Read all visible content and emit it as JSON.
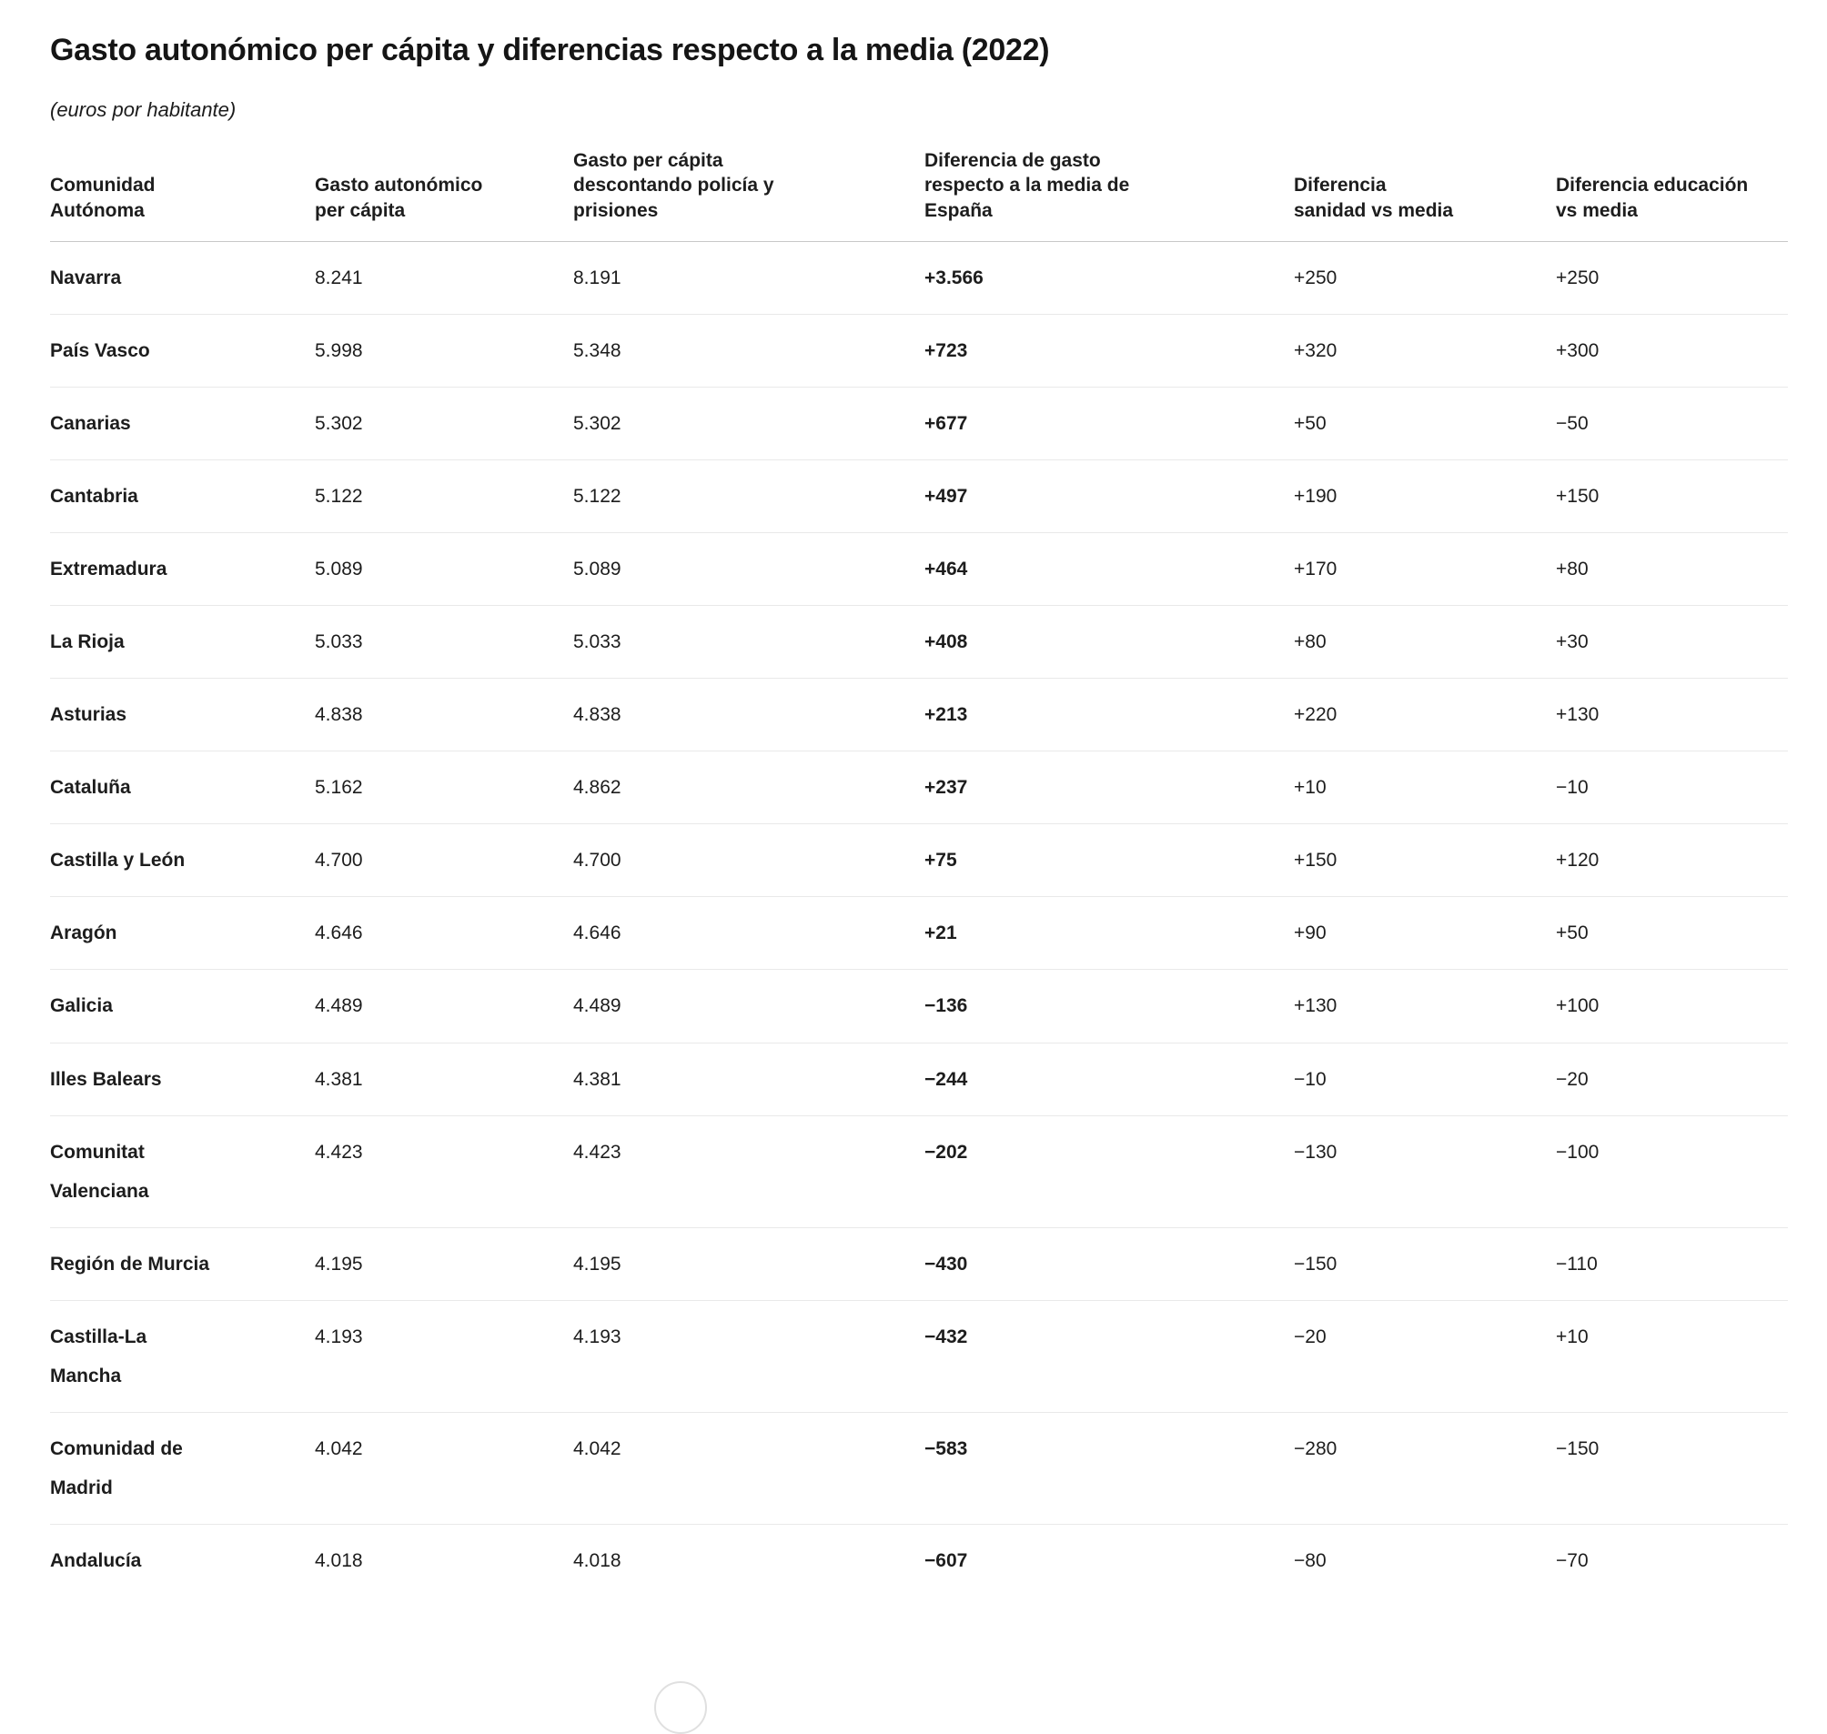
{
  "header": {
    "title": "Gasto autonómico per cápita y diferencias respecto a la media (2022)",
    "subtitle": "(euros por habitante)"
  },
  "table": {
    "columns": [
      "Comunidad Autónoma",
      "Gasto autonómico per cápita",
      "Gasto per cápita descontando policía y prisiones",
      "Diferencia de gasto respecto a la media de España",
      "Diferencia sanidad vs media",
      "Diferencia educación vs media"
    ],
    "rows": [
      {
        "region": "Navarra",
        "gasto": "8.241",
        "gasto_sin_policia": "8.191",
        "dif_gasto": "+3.566",
        "dif_sanidad": "+250",
        "dif_educacion": "+250"
      },
      {
        "region": "País Vasco",
        "gasto": "5.998",
        "gasto_sin_policia": "5.348",
        "dif_gasto": "+723",
        "dif_sanidad": "+320",
        "dif_educacion": "+300"
      },
      {
        "region": "Canarias",
        "gasto": "5.302",
        "gasto_sin_policia": "5.302",
        "dif_gasto": "+677",
        "dif_sanidad": "+50",
        "dif_educacion": "−50"
      },
      {
        "region": "Cantabria",
        "gasto": "5.122",
        "gasto_sin_policia": "5.122",
        "dif_gasto": "+497",
        "dif_sanidad": "+190",
        "dif_educacion": "+150"
      },
      {
        "region": "Extremadura",
        "gasto": "5.089",
        "gasto_sin_policia": "5.089",
        "dif_gasto": "+464",
        "dif_sanidad": "+170",
        "dif_educacion": "+80"
      },
      {
        "region": "La Rioja",
        "gasto": "5.033",
        "gasto_sin_policia": "5.033",
        "dif_gasto": "+408",
        "dif_sanidad": "+80",
        "dif_educacion": "+30"
      },
      {
        "region": "Asturias",
        "gasto": "4.838",
        "gasto_sin_policia": "4.838",
        "dif_gasto": "+213",
        "dif_sanidad": "+220",
        "dif_educacion": "+130"
      },
      {
        "region": "Cataluña",
        "gasto": "5.162",
        "gasto_sin_policia": "4.862",
        "dif_gasto": "+237",
        "dif_sanidad": "+10",
        "dif_educacion": "−10"
      },
      {
        "region": "Castilla y León",
        "gasto": "4.700",
        "gasto_sin_policia": "4.700",
        "dif_gasto": "+75",
        "dif_sanidad": "+150",
        "dif_educacion": "+120"
      },
      {
        "region": "Aragón",
        "gasto": "4.646",
        "gasto_sin_policia": "4.646",
        "dif_gasto": "+21",
        "dif_sanidad": "+90",
        "dif_educacion": "+50"
      },
      {
        "region": "Galicia",
        "gasto": "4.489",
        "gasto_sin_policia": "4.489",
        "dif_gasto": "−136",
        "dif_sanidad": "+130",
        "dif_educacion": "+100"
      },
      {
        "region": "Illes Balears",
        "gasto": "4.381",
        "gasto_sin_policia": "4.381",
        "dif_gasto": "−244",
        "dif_sanidad": "−10",
        "dif_educacion": "−20"
      },
      {
        "region": "Comunitat Valenciana",
        "gasto": "4.423",
        "gasto_sin_policia": "4.423",
        "dif_gasto": "−202",
        "dif_sanidad": "−130",
        "dif_educacion": "−100"
      },
      {
        "region": "Región de Murcia",
        "gasto": "4.195",
        "gasto_sin_policia": "4.195",
        "dif_gasto": "−430",
        "dif_sanidad": "−150",
        "dif_educacion": "−110"
      },
      {
        "region": "Castilla-La Mancha",
        "gasto": "4.193",
        "gasto_sin_policia": "4.193",
        "dif_gasto": "−432",
        "dif_sanidad": "−20",
        "dif_educacion": "+10"
      },
      {
        "region": "Comunidad de Madrid",
        "gasto": "4.042",
        "gasto_sin_policia": "4.042",
        "dif_gasto": "−583",
        "dif_sanidad": "−280",
        "dif_educacion": "−150"
      },
      {
        "region": "Andalucía",
        "gasto": "4.018",
        "gasto_sin_policia": "4.018",
        "dif_gasto": "−607",
        "dif_sanidad": "−80",
        "dif_educacion": "−70"
      }
    ]
  },
  "chart_data": {
    "type": "table",
    "title": "Gasto autonómico per cápita y diferencias respecto a la media (2022)",
    "subtitle": "(euros por habitante)",
    "units": "euros por habitante",
    "columns": [
      "Comunidad Autónoma",
      "Gasto autonómico per cápita",
      "Gasto per cápita descontando policía y prisiones",
      "Diferencia de gasto respecto a la media de España",
      "Diferencia sanidad vs media",
      "Diferencia educación vs media"
    ],
    "rows": [
      [
        "Navarra",
        8241,
        8191,
        3566,
        250,
        250
      ],
      [
        "País Vasco",
        5998,
        5348,
        723,
        320,
        300
      ],
      [
        "Canarias",
        5302,
        5302,
        677,
        50,
        -50
      ],
      [
        "Cantabria",
        5122,
        5122,
        497,
        190,
        150
      ],
      [
        "Extremadura",
        5089,
        5089,
        464,
        170,
        80
      ],
      [
        "La Rioja",
        5033,
        5033,
        408,
        80,
        30
      ],
      [
        "Asturias",
        4838,
        4838,
        213,
        220,
        130
      ],
      [
        "Cataluña",
        5162,
        4862,
        237,
        10,
        -10
      ],
      [
        "Castilla y León",
        4700,
        4700,
        75,
        150,
        120
      ],
      [
        "Aragón",
        4646,
        4646,
        21,
        90,
        50
      ],
      [
        "Galicia",
        4489,
        4489,
        -136,
        130,
        100
      ],
      [
        "Illes Balears",
        4381,
        4381,
        -244,
        -10,
        -20
      ],
      [
        "Comunitat Valenciana",
        4423,
        4423,
        -202,
        -130,
        -100
      ],
      [
        "Región de Murcia",
        4195,
        4195,
        -430,
        -150,
        -110
      ],
      [
        "Castilla-La Mancha",
        4193,
        4193,
        -432,
        -20,
        10
      ],
      [
        "Comunidad de Madrid",
        4042,
        4042,
        -583,
        -280,
        -150
      ],
      [
        "Andalucía",
        4018,
        4018,
        -607,
        -80,
        -70
      ]
    ]
  }
}
